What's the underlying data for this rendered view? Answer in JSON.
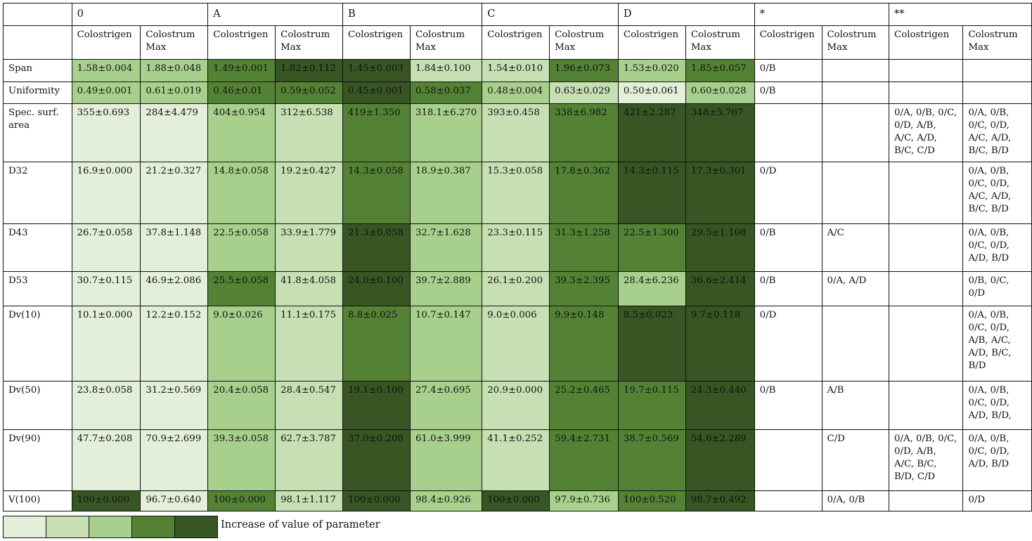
{
  "palette": {
    "1": "#e3efd9",
    "2": "#c6e0b4",
    "3": "#a8d08d",
    "4": "#548235",
    "5": "#375623"
  },
  "table": {
    "groups": [
      "0",
      "A",
      "B",
      "C",
      "D",
      "*",
      "**"
    ],
    "subheaders": [
      "Colostrigen",
      "Colostrum Max"
    ],
    "rows": [
      {
        "label": "Span",
        "height": 32,
        "values": [
          "1.58±0.004",
          "1.88±0.048",
          "1.49±0.001",
          "1.82±0.112",
          "1.45±0.003",
          "1.84±0.100",
          "1.54±0.010",
          "1.96±0.073",
          "1.53±0.020",
          "1.85±0.057"
        ],
        "shades": [
          3,
          3,
          4,
          5,
          5,
          2,
          2,
          4,
          3,
          4
        ],
        "sig": [
          "0/B",
          "",
          "",
          ""
        ]
      },
      {
        "label": "Uniformity",
        "height": 31,
        "values": [
          "0.49±0.001",
          "0.61±0.019",
          "0.46±0.01",
          "0.59±0.052",
          "0.45±0.001",
          "0.58±0.037",
          "0.48±0.004",
          "0.63±0.029",
          "0.50±0.061",
          "0.60±0.028"
        ],
        "shades": [
          3,
          3,
          4,
          4,
          5,
          4,
          3,
          2,
          1,
          3
        ],
        "sig": [
          "0/B",
          "",
          "",
          ""
        ]
      },
      {
        "label": "Spec. surf. area",
        "height": 83,
        "values": [
          "355±0.693",
          "284±4.479",
          "404±0.954",
          "312±6.538",
          "419±1.350",
          "318.1±6.270",
          "393±0.458",
          "338±6.982",
          "421±2.287",
          "348±5.767"
        ],
        "shades": [
          1,
          1,
          3,
          2,
          4,
          3,
          2,
          4,
          5,
          5
        ],
        "sig": [
          "",
          "",
          "0/A, 0/B, 0/C, 0/D, A/B, A/C, A/D, B/C, C/D",
          "0/A, 0/B, 0/C, 0/D, A/C, A/D, B/C, B/D"
        ]
      },
      {
        "label": "D32",
        "height": 88,
        "values": [
          "16.9±0.000",
          "21.2±0.327",
          "14.8±0.058",
          "19.2±0.427",
          "14.3±0.058",
          "18.9±0.387",
          "15.3±0.058",
          "17.8±0.362",
          "14.3±0.115",
          "17.3±0.301"
        ],
        "shades": [
          1,
          1,
          3,
          2,
          4,
          3,
          2,
          4,
          5,
          5
        ],
        "sig": [
          "0/D",
          "",
          "",
          "0/A, 0/B, 0/C, 0/D, A/C, A/D, B/C, B/D"
        ]
      },
      {
        "label": "D43",
        "height": 68,
        "values": [
          "26.7±0.058",
          "37.8±1.148",
          "22.5±0.058",
          "33.9±1.779",
          "21.3±0.058",
          "32.7±1.628",
          "23.3±0.115",
          "31.3±1.258",
          "22.5±1.300",
          "29.5±1.108"
        ],
        "shades": [
          1,
          1,
          3,
          2,
          5,
          3,
          2,
          4,
          4,
          5
        ],
        "sig": [
          "0/B",
          "A/C",
          "",
          "0/A, 0/B, 0/C, 0/D, A/D, B/D"
        ]
      },
      {
        "label": "D53",
        "height": 49,
        "values": [
          "30.7±0.115",
          "46.9±2.086",
          "25.5±0.058",
          "41.8±4.058",
          "24.0±0.100",
          "39.7±2.889",
          "26.1±0.200",
          "39.3±2.395",
          "28.4±6.236",
          "36.6±2.414"
        ],
        "shades": [
          1,
          1,
          4,
          2,
          5,
          3,
          2,
          4,
          3,
          5
        ],
        "sig": [
          "0/B",
          "0/A, A/D",
          "",
          "0/B, 0/C, 0/D"
        ]
      },
      {
        "label": "Dv(10)",
        "height": 107,
        "values": [
          "10.1±0.000",
          "12.2±0.152",
          "9.0±0.026",
          "11.1±0.175",
          "8.8±0.025",
          "10.7±0.147",
          "9.0±0.006",
          "9.9±0.148",
          "8.5±0.023",
          "9.7±0.118"
        ],
        "shades": [
          1,
          1,
          3,
          2,
          4,
          3,
          2,
          4,
          5,
          5
        ],
        "sig": [
          "0/D",
          "",
          "",
          "0/A, 0/B, 0/C, 0/D, A/B, A/C, A/D, B/C, B/D"
        ]
      },
      {
        "label": "Dv(50)",
        "height": 69,
        "values": [
          "23.8±0.058",
          "31.2±0.569",
          "20.4±0.058",
          "28.4±0.547",
          "19.1±0.100",
          "27.4±0.695",
          "20.9±0.000",
          "25.2±0.465",
          "19.7±0.115",
          "24.3±0.440"
        ],
        "shades": [
          1,
          1,
          3,
          2,
          5,
          3,
          2,
          4,
          4,
          5
        ],
        "sig": [
          "0/B",
          "A/B",
          "",
          "0/A, 0/B, 0/C, 0/D, A/D, B/D,"
        ]
      },
      {
        "label": "Dv(90)",
        "height": 87,
        "values": [
          "47.7±0.208",
          "70.9±2.699",
          "39.3±0.058",
          "62.7±3.787",
          "37.0±0.208",
          "61.0±3.999",
          "41.1±0.252",
          "59.4±2.731",
          "38.7±0.569",
          "54.6±2.289"
        ],
        "shades": [
          1,
          1,
          3,
          2,
          5,
          3,
          2,
          4,
          4,
          5
        ],
        "sig": [
          "",
          "C/D",
          "0/A, 0/B, 0/C, 0/D, A/B, A/C, B/C, B/D, C/D",
          "0/A, 0/B, 0/C, 0/D, A/D, B/D"
        ]
      },
      {
        "label": "V(100)",
        "height": 29,
        "values": [
          "100±0.000",
          "96.7±0.640",
          "100±0.000",
          "98.1±1.117",
          "100±0.000",
          "98.4±0.926",
          "100±0.000",
          "97.9±0.736",
          "100±0.520",
          "98.7±0.492"
        ],
        "shades": [
          5,
          1,
          4,
          2,
          5,
          3,
          5,
          3,
          4,
          5
        ],
        "sig": [
          "",
          "0/A, 0/B",
          "",
          "0/D"
        ]
      }
    ]
  },
  "legend": {
    "levels": [
      1,
      2,
      3,
      4,
      5
    ],
    "label": "Increase of value of parameter"
  }
}
